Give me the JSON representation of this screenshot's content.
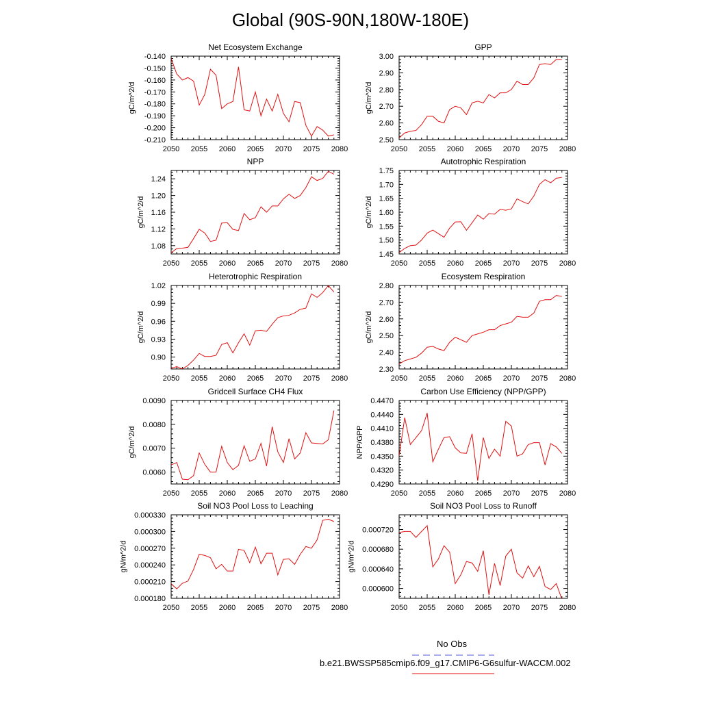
{
  "page": {
    "title": "Global (90S-90N,180W-180E)"
  },
  "legend": {
    "obs_label": "No Obs",
    "obs_color": "#5555dd",
    "model_label": "b.e21.BWSSP585cmip6.f09_g17.CMIP6-G6sulfur-WACCM.002",
    "model_color": "#e01010"
  },
  "chart_data": [
    {
      "type": "line",
      "title": "Net Ecosystem Exchange",
      "xlabel": "",
      "ylabel": "gC/m^2/d",
      "xlim": [
        2050,
        2080
      ],
      "ylim": [
        -0.21,
        -0.14
      ],
      "xticks": [
        "2050",
        "2055",
        "2060",
        "2065",
        "2070",
        "2075",
        "2080"
      ],
      "yticks": [
        "-0.210",
        "-0.200",
        "-0.190",
        "-0.180",
        "-0.170",
        "-0.160",
        "-0.150",
        "-0.140"
      ],
      "x": [
        2050,
        2051,
        2052,
        2053,
        2054,
        2055,
        2056,
        2057,
        2058,
        2059,
        2060,
        2061,
        2062,
        2063,
        2064,
        2065,
        2066,
        2067,
        2068,
        2069,
        2070,
        2071,
        2072,
        2073,
        2074,
        2075,
        2076,
        2077,
        2078,
        2079
      ],
      "series": [
        {
          "values": [
            -0.142,
            -0.155,
            -0.16,
            -0.158,
            -0.161,
            -0.181,
            -0.172,
            -0.151,
            -0.156,
            -0.184,
            -0.18,
            -0.178,
            -0.149,
            -0.185,
            -0.186,
            -0.17,
            -0.19,
            -0.176,
            -0.186,
            -0.172,
            -0.188,
            -0.195,
            -0.178,
            -0.179,
            -0.198,
            -0.207,
            -0.199,
            -0.202,
            -0.207,
            -0.206
          ]
        }
      ]
    },
    {
      "type": "line",
      "title": "GPP",
      "xlabel": "",
      "ylabel": "gC/m^2/d",
      "xlim": [
        2050,
        2080
      ],
      "ylim": [
        2.5,
        3.0
      ],
      "xticks": [
        "2050",
        "2055",
        "2060",
        "2065",
        "2070",
        "2075",
        "2080"
      ],
      "yticks": [
        "2.50",
        "2.60",
        "2.70",
        "2.80",
        "2.90",
        "3.00"
      ],
      "x": [
        2050,
        2051,
        2052,
        2053,
        2054,
        2055,
        2056,
        2057,
        2058,
        2059,
        2060,
        2061,
        2062,
        2063,
        2064,
        2065,
        2066,
        2067,
        2068,
        2069,
        2070,
        2071,
        2072,
        2073,
        2074,
        2075,
        2076,
        2077,
        2078,
        2079
      ],
      "series": [
        {
          "values": [
            2.51,
            2.54,
            2.55,
            2.555,
            2.59,
            2.64,
            2.64,
            2.61,
            2.6,
            2.68,
            2.7,
            2.69,
            2.65,
            2.72,
            2.73,
            2.72,
            2.77,
            2.75,
            2.78,
            2.78,
            2.8,
            2.85,
            2.83,
            2.83,
            2.87,
            2.95,
            2.955,
            2.95,
            2.98,
            2.98
          ]
        }
      ]
    },
    {
      "type": "line",
      "title": "NPP",
      "xlabel": "",
      "ylabel": "gC/m^2/d",
      "xlim": [
        2050,
        2080
      ],
      "ylim": [
        1.06,
        1.26
      ],
      "xticks": [
        "2050",
        "2055",
        "2060",
        "2065",
        "2070",
        "2075",
        "2080"
      ],
      "yticks": [
        "1.08",
        "1.12",
        "1.16",
        "1.20",
        "1.24"
      ],
      "x": [
        2050,
        2051,
        2052,
        2053,
        2054,
        2055,
        2056,
        2057,
        2058,
        2059,
        2060,
        2061,
        2062,
        2063,
        2064,
        2065,
        2066,
        2067,
        2068,
        2069,
        2070,
        2071,
        2072,
        2073,
        2074,
        2075,
        2076,
        2077,
        2078,
        2079
      ],
      "series": [
        {
          "values": [
            1.063,
            1.073,
            1.074,
            1.076,
            1.097,
            1.119,
            1.11,
            1.09,
            1.093,
            1.134,
            1.135,
            1.119,
            1.116,
            1.157,
            1.142,
            1.147,
            1.173,
            1.16,
            1.175,
            1.175,
            1.192,
            1.203,
            1.193,
            1.2,
            1.219,
            1.245,
            1.236,
            1.241,
            1.258,
            1.251
          ]
        }
      ]
    },
    {
      "type": "line",
      "title": "Autotrophic Respiration",
      "xlabel": "",
      "ylabel": "gC/m^2/d",
      "xlim": [
        2050,
        2080
      ],
      "ylim": [
        1.45,
        1.75
      ],
      "xticks": [
        "2050",
        "2055",
        "2060",
        "2065",
        "2070",
        "2075",
        "2080"
      ],
      "yticks": [
        "1.45",
        "1.50",
        "1.55",
        "1.60",
        "1.65",
        "1.70",
        "1.75"
      ],
      "x": [
        2050,
        2051,
        2052,
        2053,
        2054,
        2055,
        2056,
        2057,
        2058,
        2059,
        2060,
        2061,
        2062,
        2063,
        2064,
        2065,
        2066,
        2067,
        2068,
        2069,
        2070,
        2071,
        2072,
        2073,
        2074,
        2075,
        2076,
        2077,
        2078,
        2079
      ],
      "series": [
        {
          "values": [
            1.455,
            1.47,
            1.48,
            1.482,
            1.5,
            1.525,
            1.536,
            1.523,
            1.51,
            1.543,
            1.565,
            1.566,
            1.535,
            1.562,
            1.59,
            1.575,
            1.595,
            1.593,
            1.61,
            1.607,
            1.612,
            1.648,
            1.638,
            1.63,
            1.658,
            1.7,
            1.717,
            1.706,
            1.722,
            1.725
          ]
        }
      ]
    },
    {
      "type": "line",
      "title": "Heterotrophic Respiration",
      "xlabel": "",
      "ylabel": "gC/m^2/d",
      "xlim": [
        2050,
        2080
      ],
      "ylim": [
        0.88,
        1.02
      ],
      "xticks": [
        "2050",
        "2055",
        "2060",
        "2065",
        "2070",
        "2075",
        "2080"
      ],
      "yticks": [
        "0.90",
        "0.93",
        "0.96",
        "0.99",
        "1.02"
      ],
      "x": [
        2050,
        2051,
        2052,
        2053,
        2054,
        2055,
        2056,
        2057,
        2058,
        2059,
        2060,
        2061,
        2062,
        2063,
        2064,
        2065,
        2066,
        2067,
        2068,
        2069,
        2070,
        2071,
        2072,
        2073,
        2074,
        2075,
        2076,
        2077,
        2078,
        2079
      ],
      "series": [
        {
          "values": [
            0.881,
            0.884,
            0.88,
            0.886,
            0.895,
            0.906,
            0.901,
            0.901,
            0.903,
            0.921,
            0.924,
            0.907,
            0.924,
            0.939,
            0.92,
            0.944,
            0.945,
            0.943,
            0.955,
            0.966,
            0.969,
            0.97,
            0.974,
            0.98,
            0.982,
            1.006,
            1.0,
            1.008,
            1.02,
            1.009
          ]
        }
      ]
    },
    {
      "type": "line",
      "title": "Ecosystem Respiration",
      "xlabel": "",
      "ylabel": "gC/m^2/d",
      "xlim": [
        2050,
        2080
      ],
      "ylim": [
        2.3,
        2.8
      ],
      "xticks": [
        "2050",
        "2055",
        "2060",
        "2065",
        "2070",
        "2075",
        "2080"
      ],
      "yticks": [
        "2.30",
        "2.40",
        "2.50",
        "2.60",
        "2.70",
        "2.80"
      ],
      "x": [
        2050,
        2051,
        2052,
        2053,
        2054,
        2055,
        2056,
        2057,
        2058,
        2059,
        2060,
        2061,
        2062,
        2063,
        2064,
        2065,
        2066,
        2067,
        2068,
        2069,
        2070,
        2071,
        2072,
        2073,
        2074,
        2075,
        2076,
        2077,
        2078,
        2079
      ],
      "series": [
        {
          "values": [
            2.33,
            2.35,
            2.36,
            2.37,
            2.395,
            2.43,
            2.435,
            2.42,
            2.41,
            2.46,
            2.49,
            2.475,
            2.46,
            2.5,
            2.51,
            2.52,
            2.535,
            2.535,
            2.56,
            2.57,
            2.58,
            2.615,
            2.61,
            2.61,
            2.635,
            2.705,
            2.715,
            2.715,
            2.74,
            2.735
          ]
        }
      ]
    },
    {
      "type": "line",
      "title": "Gridcell Surface CH4 Flux",
      "xlabel": "",
      "ylabel": "gC/m^2/d",
      "xlim": [
        2050,
        2080
      ],
      "ylim": [
        0.0055,
        0.009
      ],
      "xticks": [
        "2050",
        "2055",
        "2060",
        "2065",
        "2070",
        "2075",
        "2080"
      ],
      "yticks": [
        "0.0060",
        "0.0070",
        "0.0080",
        "0.0090"
      ],
      "x": [
        2050,
        2051,
        2052,
        2053,
        2054,
        2055,
        2056,
        2057,
        2058,
        2059,
        2060,
        2061,
        2062,
        2063,
        2064,
        2065,
        2066,
        2067,
        2068,
        2069,
        2070,
        2071,
        2072,
        2073,
        2074,
        2075,
        2076,
        2077,
        2078,
        2079
      ],
      "series": [
        {
          "values": [
            0.0063,
            0.0064,
            0.0057,
            0.00568,
            0.00585,
            0.0068,
            0.00632,
            0.006,
            0.006,
            0.00708,
            0.0064,
            0.0061,
            0.00628,
            0.0071,
            0.00645,
            0.00655,
            0.0072,
            0.00625,
            0.0079,
            0.00685,
            0.0064,
            0.0074,
            0.00655,
            0.0068,
            0.00765,
            0.00722,
            0.0072,
            0.00718,
            0.00735,
            0.00858
          ]
        }
      ]
    },
    {
      "type": "line",
      "title": "Carbon Use Efficiency (NPP/GPP)",
      "xlabel": "",
      "ylabel": "NPP/GPP",
      "xlim": [
        2050,
        2080
      ],
      "ylim": [
        0.429,
        0.447
      ],
      "xticks": [
        "2050",
        "2055",
        "2060",
        "2065",
        "2070",
        "2075",
        "2080"
      ],
      "yticks": [
        "0.4290",
        "0.4320",
        "0.4350",
        "0.4380",
        "0.4410",
        "0.4440",
        "0.4470"
      ],
      "x": [
        2050,
        2051,
        2052,
        2053,
        2054,
        2055,
        2056,
        2057,
        2058,
        2059,
        2060,
        2061,
        2062,
        2063,
        2064,
        2065,
        2066,
        2067,
        2068,
        2069,
        2070,
        2071,
        2072,
        2073,
        2074,
        2075,
        2076,
        2077,
        2078,
        2079
      ],
      "series": [
        {
          "values": [
            0.435,
            0.4433,
            0.4375,
            0.439,
            0.4405,
            0.4443,
            0.4338,
            0.4365,
            0.439,
            0.4392,
            0.4368,
            0.4357,
            0.4356,
            0.4398,
            0.4297,
            0.439,
            0.4345,
            0.4365,
            0.435,
            0.4425,
            0.4415,
            0.435,
            0.4355,
            0.4375,
            0.4379,
            0.4379,
            0.4331,
            0.4377,
            0.437,
            0.4356
          ]
        }
      ]
    },
    {
      "type": "line",
      "title": "Soil NO3 Pool Loss to Leaching",
      "xlabel": "",
      "ylabel": "gN/m^2/d",
      "xlim": [
        2050,
        2080
      ],
      "ylim": [
        0.00018,
        0.00033
      ],
      "xticks": [
        "2050",
        "2055",
        "2060",
        "2065",
        "2070",
        "2075",
        "2080"
      ],
      "yticks": [
        "0.000180",
        "0.000210",
        "0.000240",
        "0.000270",
        "0.000300",
        "0.000330"
      ],
      "x": [
        2050,
        2051,
        2052,
        2053,
        2054,
        2055,
        2056,
        2057,
        2058,
        2059,
        2060,
        2061,
        2062,
        2063,
        2064,
        2065,
        2066,
        2067,
        2068,
        2069,
        2070,
        2071,
        2072,
        2073,
        2074,
        2075,
        2076,
        2077,
        2078,
        2079
      ],
      "series": [
        {
          "values": [
            0.000206,
            0.000197,
            0.000207,
            0.000211,
            0.000232,
            0.000259,
            0.000257,
            0.000253,
            0.000233,
            0.000241,
            0.000229,
            0.000229,
            0.000268,
            0.000266,
            0.000244,
            0.000272,
            0.000242,
            0.000261,
            0.000261,
            0.000222,
            0.00025,
            0.000251,
            0.000241,
            0.000259,
            0.000273,
            0.00027,
            0.000285,
            0.00032,
            0.000322,
            0.000318
          ]
        }
      ]
    },
    {
      "type": "line",
      "title": "Soil NO3 Pool Loss to Runoff",
      "xlabel": "",
      "ylabel": "gN/m^2/d",
      "xlim": [
        2050,
        2080
      ],
      "ylim": [
        0.00058,
        0.00075
      ],
      "xticks": [
        "2050",
        "2055",
        "2060",
        "2065",
        "2070",
        "2075",
        "2080"
      ],
      "yticks": [
        "0.000600",
        "0.000640",
        "0.000680",
        "0.000720"
      ],
      "x": [
        2050,
        2051,
        2052,
        2053,
        2054,
        2055,
        2056,
        2057,
        2058,
        2059,
        2060,
        2061,
        2062,
        2063,
        2064,
        2065,
        2066,
        2067,
        2068,
        2069,
        2070,
        2071,
        2072,
        2073,
        2074,
        2075,
        2076,
        2077,
        2078,
        2079
      ],
      "series": [
        {
          "values": [
            0.000714,
            0.000716,
            0.000716,
            0.000704,
            0.000716,
            0.000728,
            0.000644,
            0.00066,
            0.000687,
            0.000674,
            0.00061,
            0.000628,
            0.000655,
            0.000652,
            0.000635,
            0.000677,
            0.000587,
            0.000651,
            0.000606,
            0.000666,
            0.00068,
            0.000632,
            0.000621,
            0.000646,
            0.000624,
            0.000645,
            0.000604,
            0.000598,
            0.00061,
            0.000578
          ]
        }
      ]
    }
  ]
}
